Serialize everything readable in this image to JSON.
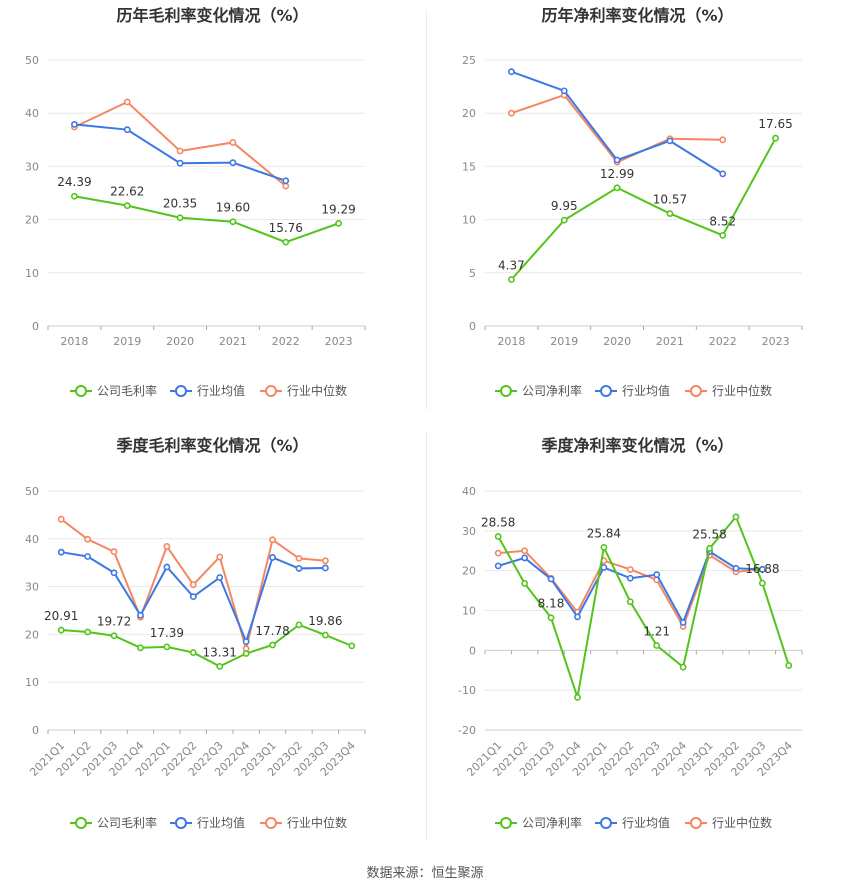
{
  "source_text": "数据来源：恒生聚源",
  "colors": {
    "company": "#52c41a",
    "industry_avg": "#3d78e3",
    "industry_median": "#f5865f",
    "axis_text": "#888888",
    "grid": "#e8e8e8"
  },
  "chart_data": [
    {
      "type": "line",
      "title": "历年毛利率变化情况（%）",
      "x": [
        "2018",
        "2019",
        "2020",
        "2021",
        "2022",
        "2023"
      ],
      "ylim": [
        0,
        50
      ],
      "yticks": [
        0,
        10,
        20,
        30,
        40,
        50
      ],
      "grid": true,
      "legend_position": "bottom",
      "series": [
        {
          "name": "公司毛利率",
          "color": "#52c41a",
          "values": [
            24.39,
            22.62,
            20.35,
            19.6,
            15.76,
            19.29
          ],
          "labels": [
            "24.39",
            "22.62",
            "20.35",
            "19.60",
            "15.76",
            "19.29"
          ]
        },
        {
          "name": "行业均值",
          "color": "#3d78e3",
          "values": [
            37.9,
            36.9,
            30.6,
            30.7,
            27.3,
            null
          ]
        },
        {
          "name": "行业中位数",
          "color": "#f5865f",
          "values": [
            37.4,
            42.1,
            32.9,
            34.5,
            26.3,
            null
          ]
        }
      ]
    },
    {
      "type": "line",
      "title": "历年净利率变化情况（%）",
      "x": [
        "2018",
        "2019",
        "2020",
        "2021",
        "2022",
        "2023"
      ],
      "ylim": [
        0,
        25
      ],
      "yticks": [
        0,
        5,
        10,
        15,
        20,
        25
      ],
      "grid": true,
      "legend_position": "bottom",
      "series": [
        {
          "name": "公司净利率",
          "color": "#52c41a",
          "values": [
            4.37,
            9.95,
            12.99,
            10.57,
            8.52,
            17.65
          ],
          "labels": [
            "4.37",
            "9.95",
            "12.99",
            "10.57",
            "8.52",
            "17.65"
          ]
        },
        {
          "name": "行业均值",
          "color": "#3d78e3",
          "values": [
            23.9,
            22.1,
            15.6,
            17.4,
            14.3,
            null
          ]
        },
        {
          "name": "行业中位数",
          "color": "#f5865f",
          "values": [
            20.0,
            21.7,
            15.4,
            17.6,
            17.5,
            null
          ]
        }
      ]
    },
    {
      "type": "line",
      "title": "季度毛利率变化情况（%）",
      "x": [
        "2021Q1",
        "2021Q2",
        "2021Q3",
        "2021Q4",
        "2022Q1",
        "2022Q2",
        "2022Q3",
        "2022Q4",
        "2023Q1",
        "2023Q2",
        "2023Q3",
        "2023Q4"
      ],
      "ylim": [
        0,
        50
      ],
      "yticks": [
        0,
        10,
        20,
        30,
        40,
        50
      ],
      "grid": true,
      "legend_position": "bottom",
      "series": [
        {
          "name": "公司毛利率",
          "color": "#52c41a",
          "values": [
            20.91,
            20.5,
            19.72,
            17.2,
            17.39,
            16.2,
            13.31,
            16.0,
            17.78,
            22.0,
            19.86,
            17.6
          ],
          "labels": [
            "20.91",
            null,
            "19.72",
            null,
            "17.39",
            null,
            "13.31",
            null,
            "17.78",
            null,
            "19.86",
            null
          ]
        },
        {
          "name": "行业均值",
          "color": "#3d78e3",
          "values": [
            37.2,
            36.3,
            32.9,
            24.0,
            34.1,
            27.9,
            31.9,
            18.5,
            36.1,
            33.8,
            33.9,
            null
          ]
        },
        {
          "name": "行业中位数",
          "color": "#f5865f",
          "values": [
            44.1,
            39.9,
            37.3,
            23.6,
            38.4,
            30.4,
            36.2,
            17.0,
            39.8,
            35.9,
            35.4,
            null
          ]
        }
      ]
    },
    {
      "type": "line",
      "title": "季度净利率变化情况（%）",
      "x": [
        "2021Q1",
        "2021Q2",
        "2021Q3",
        "2021Q4",
        "2022Q1",
        "2022Q2",
        "2022Q3",
        "2022Q4",
        "2023Q1",
        "2023Q2",
        "2023Q3",
        "2023Q4"
      ],
      "ylim": [
        -20,
        40
      ],
      "yticks": [
        -20,
        -10,
        0,
        10,
        20,
        30,
        40
      ],
      "grid": true,
      "legend_position": "bottom",
      "series": [
        {
          "name": "公司净利率",
          "color": "#52c41a",
          "values": [
            28.58,
            16.8,
            8.18,
            -11.8,
            25.84,
            12.2,
            1.21,
            -4.2,
            25.58,
            33.5,
            16.88,
            -3.8
          ],
          "labels": [
            "28.58",
            null,
            "8.18",
            null,
            "25.84",
            null,
            "1.21",
            null,
            "25.58",
            null,
            "16.88",
            null
          ]
        },
        {
          "name": "行业均值",
          "color": "#3d78e3",
          "values": [
            21.2,
            23.2,
            17.9,
            8.4,
            20.8,
            18.1,
            19.0,
            7.0,
            24.8,
            20.6,
            20.3,
            null
          ]
        },
        {
          "name": "行业中位数",
          "color": "#f5865f",
          "values": [
            24.4,
            25.0,
            18.1,
            9.6,
            22.5,
            20.3,
            17.7,
            6.0,
            23.9,
            19.7,
            20.4,
            null
          ]
        }
      ]
    }
  ]
}
